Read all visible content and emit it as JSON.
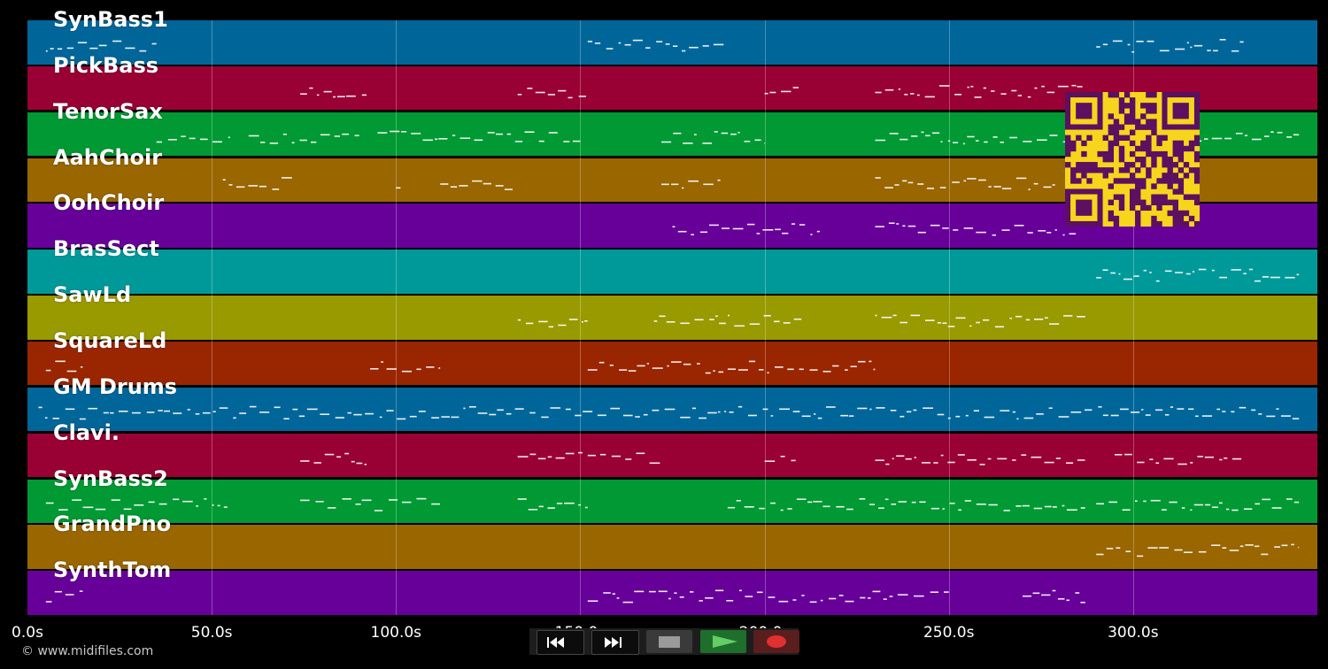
{
  "tracks": [
    {
      "name": "SynBass1",
      "color": "#006699"
    },
    {
      "name": "PickBass",
      "color": "#990033"
    },
    {
      "name": "TenorSax",
      "color": "#009933"
    },
    {
      "name": "AahChoir",
      "color": "#996600"
    },
    {
      "name": "OohChoir",
      "color": "#660099"
    },
    {
      "name": "BrasSect",
      "color": "#009999"
    },
    {
      "name": "SawLd",
      "color": "#999900"
    },
    {
      "name": "SquareLd",
      "color": "#992600"
    },
    {
      "name": "GM Drums",
      "color": "#006699"
    },
    {
      "name": "Clavi.",
      "color": "#990033"
    },
    {
      "name": "SynBass2",
      "color": "#009933"
    },
    {
      "name": "GrandPno",
      "color": "#996600"
    },
    {
      "name": "SynthTom",
      "color": "#660099"
    }
  ],
  "time_axis": {
    "min": 0,
    "max": 350,
    "ticks": [
      {
        "value": 0,
        "label": "0.0s"
      },
      {
        "value": 50,
        "label": "50.0s"
      },
      {
        "value": 100,
        "label": "100.0s"
      },
      {
        "value": 150,
        "label": "150.0s"
      },
      {
        "value": 200,
        "label": "200.0s"
      },
      {
        "value": 250,
        "label": "250.0s"
      },
      {
        "value": 300,
        "label": "300.0s"
      }
    ]
  },
  "copyright": "© www.midifiles.com",
  "qr_code": {
    "color": "#f6d51d",
    "module_color": "#5b1060"
  },
  "transport": {
    "rewind_icon": "rewind-icon",
    "forward_icon": "fast-forward-icon",
    "stop_icon": "stop-icon",
    "play_icon": "play-icon",
    "record_icon": "record-icon",
    "play_color": "#66cc66",
    "record_color": "#e03030"
  }
}
